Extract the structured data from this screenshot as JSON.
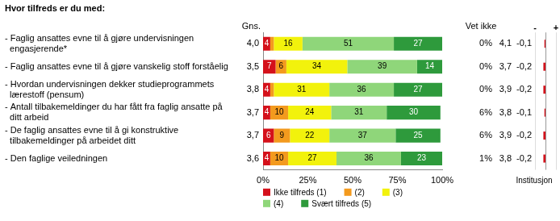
{
  "chart_data": {
    "type": "bar",
    "orientation": "horizontal",
    "stacked": true,
    "data_labels": true,
    "grid": false,
    "legend": "bottom left",
    "title": "Hvor tilfreds er du med:",
    "categories": [
      "- Faglig ansattes evne til å gjøre undervisningen engasjerende*",
      "- Faglig ansattes evne til å gjøre vanskelig stoff forståelig",
      "- Hvordan undervisningen dekker studieprogrammets lærestoff (pensum)",
      "- Antall tilbakemeldinger du har fått fra faglig ansatte på ditt arbeid",
      "- De faglig ansattes evne til å gi konstruktive tilbakemeldinger på arbeidet ditt",
      "- Den faglige veiledningen"
    ],
    "series": [
      {
        "name": "Ikke tilfreds (1)",
        "color": "#d4111b",
        "values": [
          4,
          7,
          4,
          4,
          6,
          4
        ]
      },
      {
        "name": "(2)",
        "color": "#f39a1e",
        "values": [
          2,
          6,
          2,
          10,
          9,
          10
        ],
        "value_labels": [
          null,
          "6",
          null,
          "10",
          "9",
          "10"
        ]
      },
      {
        "name": "(3)",
        "color": "#f2f20c",
        "values": [
          16,
          34,
          31,
          24,
          22,
          27
        ]
      },
      {
        "name": "(4)",
        "color": "#8fd67a",
        "values": [
          51,
          39,
          36,
          31,
          37,
          36
        ]
      },
      {
        "name": "Svært tilfreds (5)",
        "color": "#2e9a3c",
        "values": [
          27,
          14,
          27,
          30,
          25,
          23
        ]
      }
    ],
    "xlim": [
      0,
      100
    ],
    "xticks": [
      {
        "value": 0,
        "label": "0%"
      },
      {
        "value": 25,
        "label": "25%"
      },
      {
        "value": 50,
        "label": "50%"
      },
      {
        "value": 75,
        "label": "75%"
      },
      {
        "value": 100,
        "label": "100%"
      }
    ],
    "mean_title": "Gns.",
    "mean": [
      {
        "value": 4.0,
        "label": "4,0"
      },
      {
        "value": 3.5,
        "label": "3,5"
      },
      {
        "value": 3.8,
        "label": "3,8"
      },
      {
        "value": 3.7,
        "label": "3,7"
      },
      {
        "value": 3.7,
        "label": "3,7"
      },
      {
        "value": 3.6,
        "label": "3,6"
      }
    ],
    "dont_know_title": "Vet ikke",
    "dont_know": [
      {
        "value": 0,
        "label": "0%"
      },
      {
        "value": 0,
        "label": "0%"
      },
      {
        "value": 0,
        "label": "0%"
      },
      {
        "value": 6,
        "label": "6%"
      },
      {
        "value": 6,
        "label": "6%"
      },
      {
        "value": 1,
        "label": "1%"
      }
    ],
    "institution_title": "Institusjon",
    "institution_mean": [
      {
        "value": 4.1,
        "label": "4,1"
      },
      {
        "value": 3.7,
        "label": "3,7"
      },
      {
        "value": 3.9,
        "label": "3,9"
      },
      {
        "value": 3.8,
        "label": "3,8"
      },
      {
        "value": 3.9,
        "label": "3,9"
      },
      {
        "value": 3.8,
        "label": "3,8"
      }
    ],
    "institution_difference": [
      {
        "value": -0.1,
        "label": "-0,1"
      },
      {
        "value": -0.2,
        "label": "-0,2"
      },
      {
        "value": -0.2,
        "label": "-0,2"
      },
      {
        "value": -0.1,
        "label": "-0,1"
      },
      {
        "value": -0.2,
        "label": "-0,2"
      },
      {
        "value": -0.2,
        "label": "-0,2"
      }
    ],
    "difference_lim": [
      -1,
      1
    ],
    "difference_ticks": [
      {
        "value": -1,
        "label": "-"
      },
      {
        "value": 1,
        "label": "+"
      }
    ]
  }
}
